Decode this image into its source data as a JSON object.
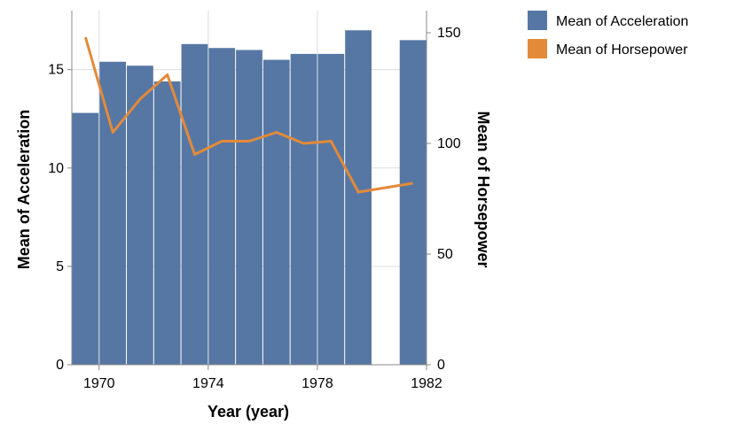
{
  "chart_data": {
    "type": "bar+line",
    "x": [
      1970,
      1971,
      1972,
      1973,
      1974,
      1975,
      1976,
      1977,
      1978,
      1979,
      1980,
      1981,
      1982
    ],
    "x_ticks": [
      1970,
      1974,
      1978,
      1982
    ],
    "x_tick_labels": [
      "1970",
      "1974",
      "1978",
      "1982"
    ],
    "xlabel": "Year (year)",
    "series": [
      {
        "name": "Mean of Acceleration",
        "type": "bar",
        "axis": "left",
        "color": "#5677a4",
        "values": [
          12.8,
          15.4,
          15.2,
          14.4,
          16.3,
          16.1,
          16.0,
          15.5,
          15.8,
          15.8,
          17.0,
          null,
          16.5
        ]
      },
      {
        "name": "Mean of Horsepower",
        "type": "line",
        "axis": "right",
        "color": "#e38a39",
        "values": [
          148,
          105,
          120,
          131,
          95,
          101,
          101,
          105,
          100,
          101,
          78,
          80,
          82
        ]
      }
    ],
    "y_left": {
      "label": "Mean of Acceleration",
      "ylim": [
        0,
        18
      ],
      "ticks": [
        0,
        5,
        10,
        15
      ],
      "tick_labels": [
        "0",
        "5",
        "10",
        "15"
      ]
    },
    "y_right": {
      "label": "Mean of Horsepower",
      "ylim": [
        0,
        160
      ],
      "ticks": [
        0,
        50,
        100,
        150
      ],
      "tick_labels": [
        "0",
        "50",
        "100",
        "150"
      ]
    },
    "legend": {
      "position": "top-right",
      "entries": [
        "Mean of Acceleration",
        "Mean of Horsepower"
      ]
    },
    "grid": true
  }
}
